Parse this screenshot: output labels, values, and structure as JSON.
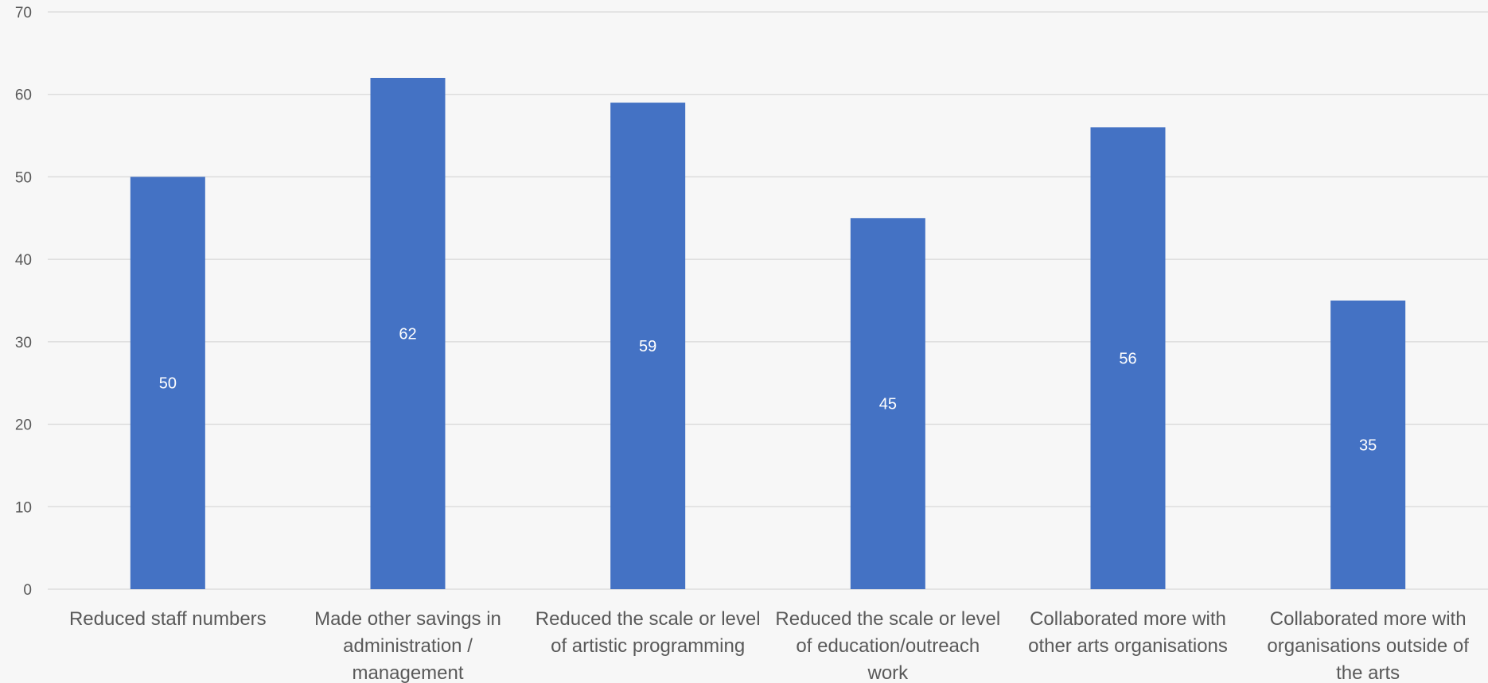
{
  "chart_data": {
    "type": "bar",
    "title": "",
    "xlabel": "",
    "ylabel": "",
    "ylim": [
      0,
      70
    ],
    "yticks": [
      0,
      10,
      20,
      30,
      40,
      50,
      60,
      70
    ],
    "grid": true,
    "bar_color": "#4472C4",
    "categories": [
      [
        "Reduced staff numbers"
      ],
      [
        "Made other savings in",
        "administration /",
        "management"
      ],
      [
        "Reduced the scale or level",
        "of artistic programming"
      ],
      [
        "Reduced the scale or level",
        "of education/outreach",
        "work"
      ],
      [
        "Collaborated more with",
        "other arts organisations"
      ],
      [
        "Collaborated more with",
        "organisations outside of",
        "the arts"
      ]
    ],
    "values": [
      50,
      62,
      59,
      45,
      56,
      35
    ]
  }
}
